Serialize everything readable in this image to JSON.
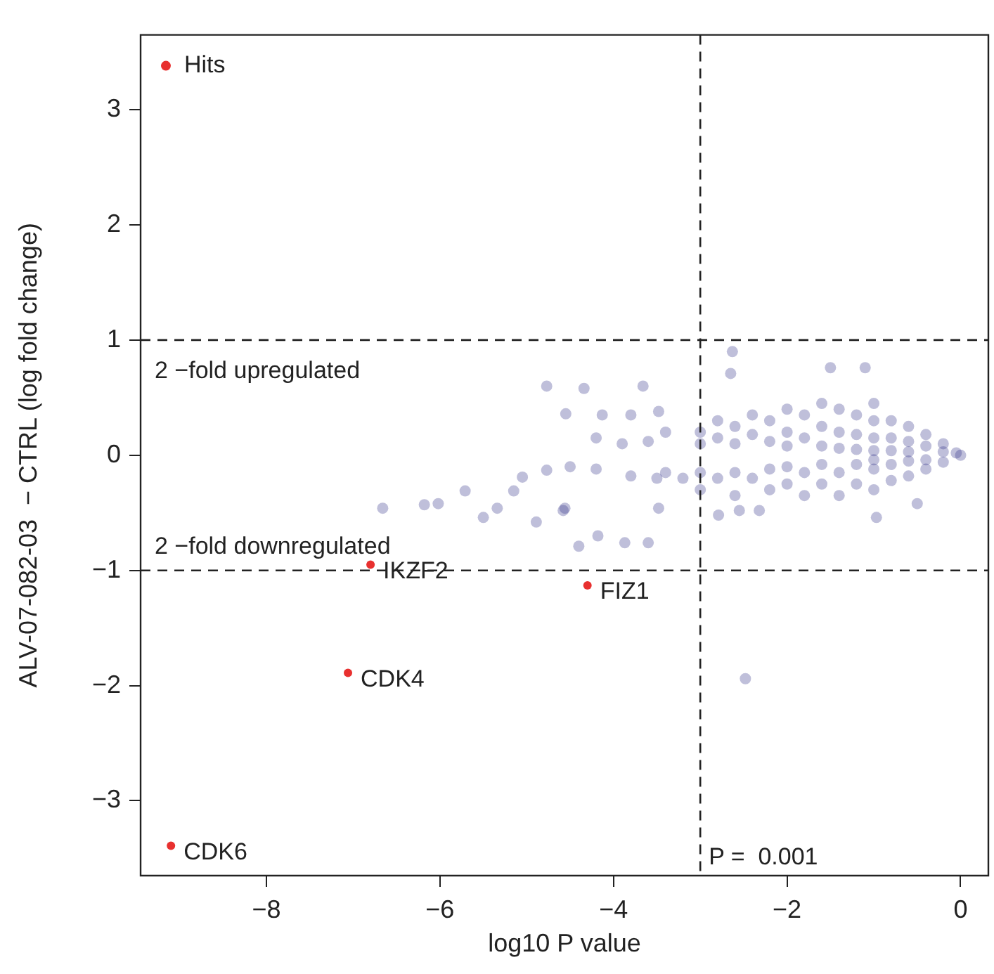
{
  "chart_data": {
    "type": "scatter",
    "xlabel": "log10 P value",
    "ylabel": "ALV-07-082-03  − CTRL (log fold change)",
    "xlim": [
      -9.45,
      0.32
    ],
    "ylim": [
      -3.65,
      3.65
    ],
    "xticks": [
      {
        "value": -8,
        "label": "−8"
      },
      {
        "value": -6,
        "label": "−6"
      },
      {
        "value": -4,
        "label": "−4"
      },
      {
        "value": -2,
        "label": "−2"
      },
      0
    ],
    "yticks": [
      {
        "value": -3,
        "label": "−3"
      },
      {
        "value": -2,
        "label": "−2"
      },
      {
        "value": -1,
        "label": "−1"
      },
      0,
      1,
      2,
      3
    ],
    "grid": false,
    "legend": "top left",
    "marker": "circle",
    "series": [
      {
        "color": "#2b2a84",
        "x": [
          -2.63,
          -1.5,
          -1.1,
          -2.65,
          -4.77,
          -4.34,
          -3.66,
          -4.55,
          -4.13,
          -3.8,
          -3.48,
          -4.77,
          -4.89,
          -4.56,
          -4.4,
          -4.18,
          -3.87,
          -3.6,
          -3.48,
          -2.79,
          -2.55,
          -2.32,
          -0.97,
          -0.5,
          -2.48,
          -6.66,
          -6.18,
          -6.02,
          -5.71,
          -5.5,
          -5.34,
          -5.15,
          -5.05,
          -4.58,
          -3,
          -3,
          -2.8,
          -2.8,
          -2.6,
          -2.6,
          -2.4,
          -2.4,
          -2.2,
          -2.2,
          -2,
          -2,
          -2,
          -1.8,
          -1.8,
          -1.6,
          -1.6,
          -1.6,
          -1.4,
          -1.4,
          -1.4,
          -1.2,
          -1.2,
          -1.2,
          -1,
          -1,
          -1,
          -1,
          -0.8,
          -0.8,
          -0.8,
          -0.6,
          -0.6,
          -0.6,
          -0.4,
          -0.4,
          -0.2,
          -0.2,
          -0.05,
          0,
          -3.4,
          -3.2,
          -3,
          -3,
          -2.8,
          -2.6,
          -2.6,
          -2.4,
          -2.2,
          -2.2,
          -2,
          -2,
          -1.8,
          -1.8,
          -1.6,
          -1.6,
          -1.4,
          -1.4,
          -1.2,
          -1.2,
          -1,
          -1,
          -1,
          -0.8,
          -0.8,
          -0.6,
          -0.6,
          -0.4,
          -0.4,
          -0.2,
          -3.6,
          -3.9,
          -4.2,
          -3.4,
          -3.5,
          -3.8,
          -4.2,
          -4.5
        ],
        "values": [
          0.9,
          0.76,
          0.76,
          0.71,
          0.6,
          0.58,
          0.6,
          0.36,
          0.35,
          0.35,
          0.38,
          -0.13,
          -0.58,
          -0.46,
          -0.79,
          -0.7,
          -0.76,
          -0.76,
          -0.46,
          -0.52,
          -0.48,
          -0.48,
          -0.54,
          -0.42,
          -1.94,
          -0.46,
          -0.43,
          -0.42,
          -0.31,
          -0.54,
          -0.46,
          -0.31,
          -0.19,
          -0.48,
          0.2,
          0.1,
          0.3,
          0.15,
          0.25,
          0.1,
          0.35,
          0.18,
          0.3,
          0.12,
          0.4,
          0.2,
          0.08,
          0.35,
          0.15,
          0.45,
          0.25,
          0.08,
          0.4,
          0.2,
          0.06,
          0.35,
          0.18,
          0.05,
          0.45,
          0.3,
          0.15,
          0.04,
          0.3,
          0.15,
          0.04,
          0.25,
          0.12,
          0.03,
          0.18,
          0.08,
          0.1,
          0.03,
          0.02,
          0,
          -0.15,
          -0.2,
          -0.15,
          -0.3,
          -0.2,
          -0.35,
          -0.15,
          -0.2,
          -0.3,
          -0.12,
          -0.25,
          -0.1,
          -0.35,
          -0.15,
          -0.25,
          -0.08,
          -0.35,
          -0.15,
          -0.25,
          -0.08,
          -0.3,
          -0.12,
          -0.04,
          -0.22,
          -0.08,
          -0.18,
          -0.05,
          -0.12,
          -0.04,
          -0.06,
          0.12,
          0.1,
          0.15,
          0.2,
          -0.2,
          -0.18,
          -0.12,
          -0.1
        ]
      },
      {
        "name": "Hits",
        "color": "#e8302f",
        "x": [
          -6.8,
          -4.3,
          -7.06,
          -9.1
        ],
        "values": [
          -0.95,
          -1.13,
          -1.89,
          -3.39
        ]
      }
    ],
    "ref_lines": [
      {
        "axis": "y",
        "value": 1,
        "label": "2 −fold upregulated",
        "line_style": "dashed"
      },
      {
        "axis": "y",
        "value": -1,
        "label": "2 −fold downregulated",
        "line_style": "dashed"
      },
      {
        "axis": "x",
        "value": -3,
        "line_style": "dashed"
      }
    ],
    "annotations": [
      "P =  0.001",
      {
        "text": "IKZF2",
        "x": -6.8,
        "y": -0.95
      },
      {
        "text": "FIZ1",
        "x": -4.3,
        "y": -1.13
      },
      {
        "text": "CDK4",
        "x": -7.06,
        "y": -1.89
      },
      {
        "text": "CDK6",
        "x": -9.1,
        "y": -3.39
      }
    ]
  }
}
